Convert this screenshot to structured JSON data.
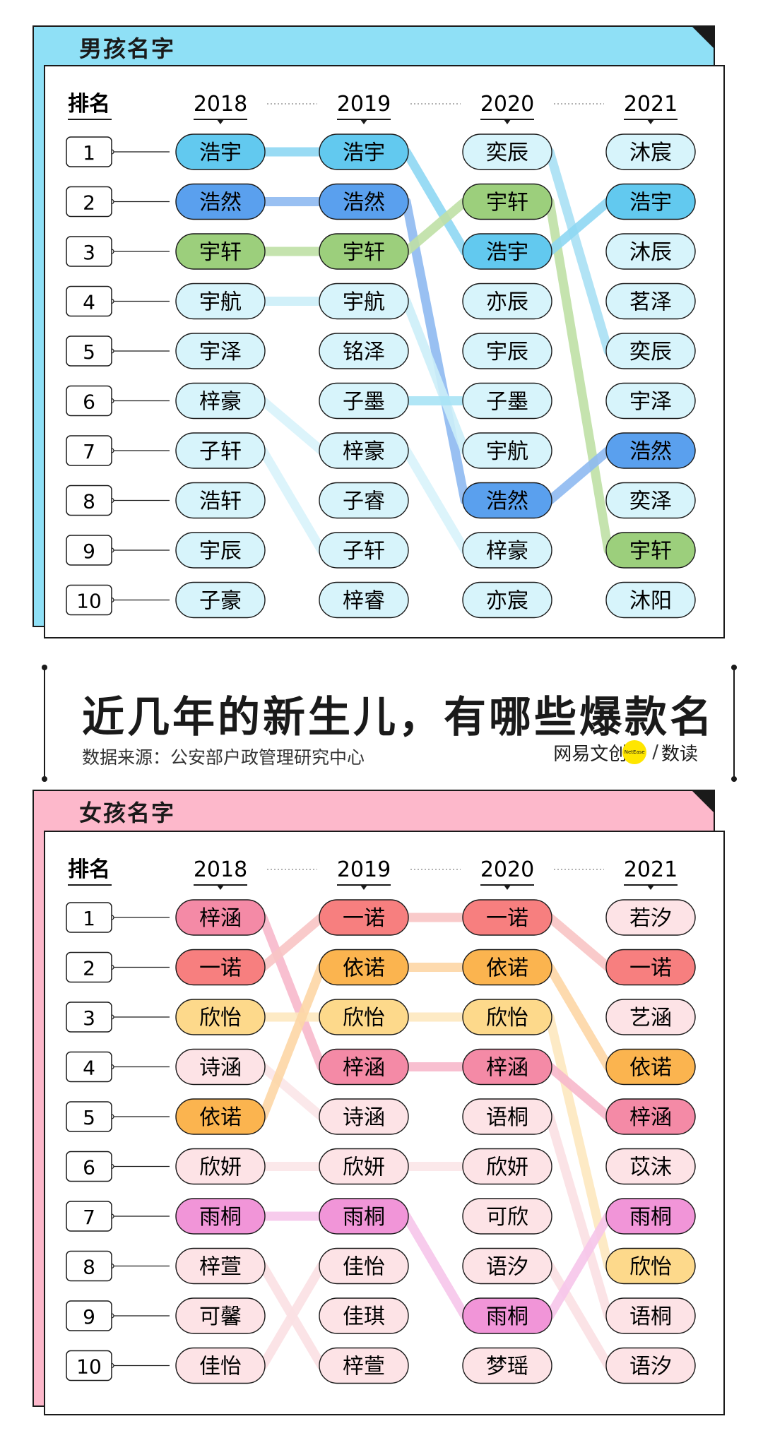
{
  "title": "近几年的新生儿，有哪些爆款名",
  "source": "数据来源：公安部户政管理研究中心",
  "logo": {
    "part1": "网易",
    "part2": "文创",
    "badge": "NetEase",
    "slash": "/",
    "part3": "数读"
  },
  "charts": [
    {
      "id": "boys",
      "title": "男孩名字",
      "rank_header": "排名",
      "years": [
        "2018",
        "2019",
        "2020",
        "2021"
      ],
      "ranks": [
        "1",
        "2",
        "3",
        "4",
        "5",
        "6",
        "7",
        "8",
        "9",
        "10"
      ],
      "columns": [
        [
          "浩宇",
          "浩然",
          "宇轩",
          "宇航",
          "宇泽",
          "梓豪",
          "子轩",
          "浩轩",
          "宇辰",
          "子豪"
        ],
        [
          "浩宇",
          "浩然",
          "宇轩",
          "宇航",
          "铭泽",
          "子墨",
          "梓豪",
          "子睿",
          "子轩",
          "梓睿"
        ],
        [
          "奕辰",
          "宇轩",
          "浩宇",
          "亦辰",
          "宇辰",
          "子墨",
          "宇航",
          "浩然",
          "梓豪",
          "亦宸"
        ],
        [
          "沐宸",
          "浩宇",
          "沐辰",
          "茗泽",
          "奕辰",
          "宇泽",
          "浩然",
          "奕泽",
          "宇轩",
          "沐阳"
        ]
      ],
      "highlights": {
        "浩宇": "#62c9ef",
        "浩然": "#5aa0ee",
        "宇轩": "#9ccf7c"
      },
      "default_fill": "#d7f4fb",
      "lines": {
        "浩宇": "#8ed8f3",
        "浩然": "#8ebaf1",
        "宇轩": "#bfe0a6",
        "宇航": "#cdeff9",
        "梓豪": "#d9f3fb",
        "子轩": "#d9f3fb",
        "子墨": "#a9e4f6",
        "奕辰": "#a9e1f5"
      }
    },
    {
      "id": "girls",
      "title": "女孩名字",
      "rank_header": "排名",
      "years": [
        "2018",
        "2019",
        "2020",
        "2021"
      ],
      "ranks": [
        "1",
        "2",
        "3",
        "4",
        "5",
        "6",
        "7",
        "8",
        "9",
        "10"
      ],
      "columns": [
        [
          "梓涵",
          "一诺",
          "欣怡",
          "诗涵",
          "依诺",
          "欣妍",
          "雨桐",
          "梓萱",
          "可馨",
          "佳怡"
        ],
        [
          "一诺",
          "依诺",
          "欣怡",
          "梓涵",
          "诗涵",
          "欣妍",
          "雨桐",
          "佳怡",
          "佳琪",
          "梓萱"
        ],
        [
          "一诺",
          "依诺",
          "欣怡",
          "梓涵",
          "语桐",
          "欣妍",
          "可欣",
          "语汐",
          "雨桐",
          "梦瑶"
        ],
        [
          "若汐",
          "一诺",
          "艺涵",
          "依诺",
          "梓涵",
          "苡沫",
          "雨桐",
          "欣怡",
          "语桐",
          "语汐"
        ]
      ],
      "highlights": {
        "梓涵": "#f48aa6",
        "一诺": "#f77f7f",
        "欣怡": "#fdd98b",
        "依诺": "#fbb44f",
        "雨桐": "#f195d8"
      },
      "default_fill": "#fde3e6",
      "lines": {
        "梓涵": "#f8b9cc",
        "一诺": "#f9c5c5",
        "欣怡": "#fde8bf",
        "依诺": "#fdd7a6",
        "雨桐": "#f7c6eb",
        "诗涵": "#fbe6e8",
        "欣妍": "#fbe6e8",
        "梓萱": "#fbe1e4",
        "佳怡": "#fbe1e4",
        "语桐": "#fbe1e4",
        "语汐": "#fbe1e4"
      }
    }
  ]
}
